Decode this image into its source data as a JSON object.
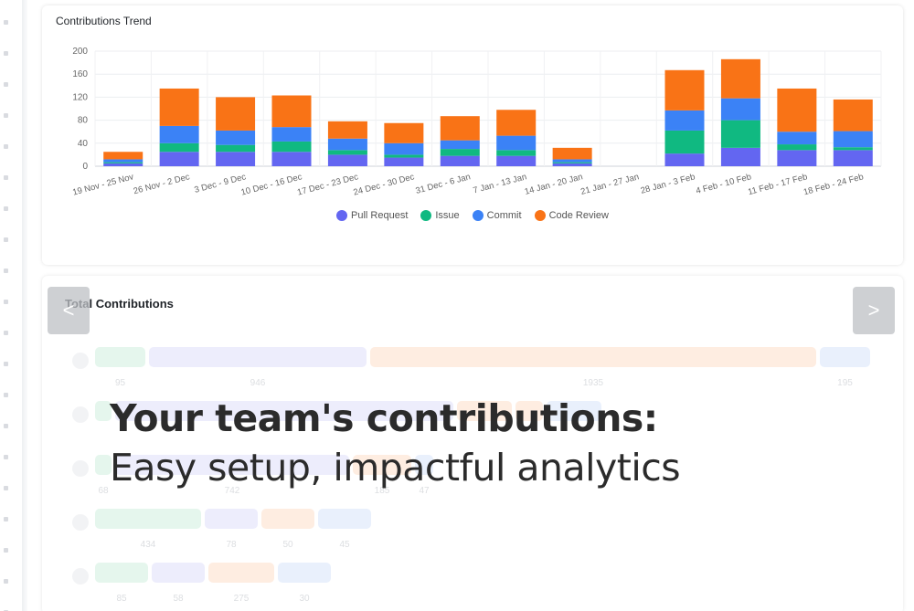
{
  "trend": {
    "title": "Contributions Trend"
  },
  "chart_data": {
    "type": "bar",
    "stacked": true,
    "categories": [
      "19 Nov - 25 Nov",
      "26 Nov - 2 Dec",
      "3 Dec - 9 Dec",
      "10 Dec - 16 Dec",
      "17 Dec - 23 Dec",
      "24 Dec - 30 Dec",
      "31 Dec - 6 Jan",
      "7 Jan - 13 Jan",
      "14 Jan - 20 Jan",
      "21 Jan - 27 Jan",
      "28 Jan - 3 Feb",
      "4 Feb - 10 Feb",
      "11 Feb - 17 Feb",
      "18 Feb - 24 Feb"
    ],
    "series": [
      {
        "name": "Pull Request",
        "color": "#6366f1",
        "values": [
          5,
          25,
          25,
          25,
          20,
          15,
          18,
          18,
          5,
          0,
          22,
          32,
          28,
          28
        ]
      },
      {
        "name": "Issue",
        "color": "#10b981",
        "values": [
          2,
          15,
          12,
          18,
          8,
          5,
          12,
          10,
          2,
          0,
          40,
          48,
          10,
          5
        ]
      },
      {
        "name": "Commit",
        "color": "#3b82f6",
        "values": [
          5,
          30,
          25,
          25,
          20,
          20,
          15,
          25,
          5,
          0,
          35,
          38,
          22,
          28
        ]
      },
      {
        "name": "Code Review",
        "color": "#f97316",
        "values": [
          13,
          65,
          58,
          55,
          30,
          35,
          42,
          45,
          20,
          0,
          70,
          68,
          75,
          55
        ]
      }
    ],
    "yticks": [
      "0",
      "40",
      "80",
      "120",
      "160",
      "200"
    ],
    "ylim": [
      0,
      200
    ],
    "legend": "bottom",
    "grid": true
  },
  "total": {
    "title": "Total Contributions",
    "rows": [
      {
        "segments": [
          {
            "width": 55,
            "color": "#d7f2e3",
            "label": "95"
          },
          {
            "width": 238,
            "color": "#e4e3fb",
            "label": "946"
          },
          {
            "width": 488,
            "color": "#fde3d2",
            "label": "1935"
          },
          {
            "width": 55,
            "color": "#dde8fb",
            "label": "195"
          }
        ]
      },
      {
        "segments": [
          {
            "width": 18,
            "color": "#d7f2e3",
            "label": ""
          },
          {
            "width": 370,
            "color": "#e4e3fb",
            "label": ""
          },
          {
            "width": 60,
            "color": "#fde3d2",
            "label": ""
          },
          {
            "width": 30,
            "color": "#fde3d2",
            "label": ""
          },
          {
            "width": 60,
            "color": "#dde8fb",
            "label": ""
          }
        ]
      },
      {
        "segments": [
          {
            "width": 18,
            "color": "#d7f2e3",
            "label": "68"
          },
          {
            "width": 256,
            "color": "#e4e3fb",
            "label": "742"
          },
          {
            "width": 64,
            "color": "#fde3d2",
            "label": "185"
          },
          {
            "width": 20,
            "color": "#dde8fb",
            "label": "47"
          }
        ]
      },
      {
        "segments": [
          {
            "width": 116,
            "color": "#d7f2e3",
            "label": "434"
          },
          {
            "width": 58,
            "color": "#e4e3fb",
            "label": "78"
          },
          {
            "width": 58,
            "color": "#fde3d2",
            "label": "50"
          },
          {
            "width": 58,
            "color": "#dde8fb",
            "label": "45"
          }
        ]
      },
      {
        "segments": [
          {
            "width": 58,
            "color": "#d7f2e3",
            "label": "85"
          },
          {
            "width": 58,
            "color": "#e4e3fb",
            "label": "58"
          },
          {
            "width": 72,
            "color": "#fde3d2",
            "label": "275"
          },
          {
            "width": 58,
            "color": "#dde8fb",
            "label": "30"
          }
        ]
      }
    ]
  },
  "carousel": {
    "prev_label": "<",
    "next_label": ">"
  },
  "headline": {
    "line1": "Your team's contributions:",
    "line2": "Easy setup, impactful analytics"
  }
}
